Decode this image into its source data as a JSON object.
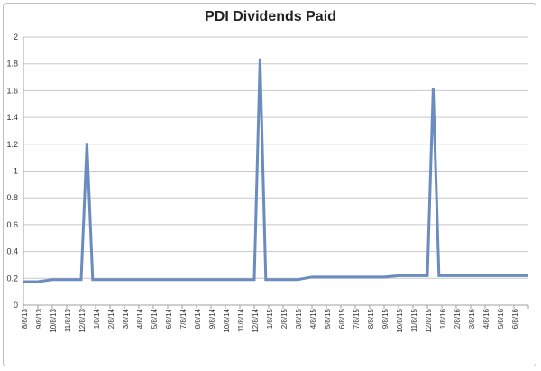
{
  "chart_data": {
    "type": "line",
    "title": "PDI Dividends Paid",
    "xlabel": "",
    "ylabel": "",
    "ylim": [
      0,
      2
    ],
    "grid": "horizontal",
    "legend": "none",
    "y_ticks": [
      "0",
      "0.2",
      "0.4",
      "0.6",
      "0.8",
      "1",
      "1.2",
      "1.4",
      "1.6",
      "1.8",
      "2"
    ],
    "categories": [
      "8/8/13",
      "9/8/13",
      "10/8/13",
      "11/8/13",
      "12/8/13",
      "1/8/14",
      "2/8/14",
      "3/8/14",
      "4/8/14",
      "5/8/14",
      "6/8/14",
      "7/8/14",
      "8/8/14",
      "9/8/14",
      "10/8/14",
      "11/8/14",
      "12/8/14",
      "1/8/15",
      "2/8/15",
      "3/8/15",
      "4/8/15",
      "5/8/15",
      "6/8/15",
      "7/8/15",
      "8/8/15",
      "9/8/15",
      "10/8/15",
      "11/8/15",
      "12/8/15",
      "1/8/16",
      "2/8/16",
      "3/8/16",
      "4/8/16",
      "5/8/16",
      "6/8/16"
    ],
    "series": [
      {
        "color": "#6b8cbe",
        "points": [
          {
            "x": 0,
            "y": 0.175
          },
          {
            "x": 1,
            "y": 0.175
          },
          {
            "x": 2,
            "y": 0.19
          },
          {
            "x": 3,
            "y": 0.19
          },
          {
            "x": 4,
            "y": 0.19
          },
          {
            "x": 4.4,
            "y": 1.21
          },
          {
            "x": 4.8,
            "y": 0.19
          },
          {
            "x": 5,
            "y": 0.19
          },
          {
            "x": 10,
            "y": 0.19
          },
          {
            "x": 16,
            "y": 0.19
          },
          {
            "x": 16.4,
            "y": 1.84
          },
          {
            "x": 16.8,
            "y": 0.19
          },
          {
            "x": 17,
            "y": 0.19
          },
          {
            "x": 19,
            "y": 0.19
          },
          {
            "x": 20,
            "y": 0.21
          },
          {
            "x": 25,
            "y": 0.21
          },
          {
            "x": 26,
            "y": 0.22
          },
          {
            "x": 28,
            "y": 0.22
          },
          {
            "x": 28.4,
            "y": 1.62
          },
          {
            "x": 28.8,
            "y": 0.22
          },
          {
            "x": 29,
            "y": 0.22
          },
          {
            "x": 35,
            "y": 0.22
          }
        ]
      }
    ]
  }
}
